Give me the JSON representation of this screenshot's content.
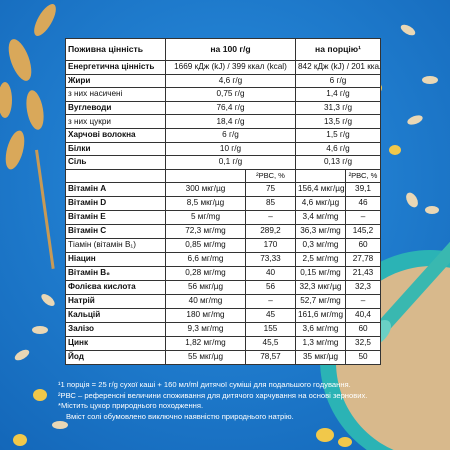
{
  "table": {
    "header": [
      "Поживна цінність",
      "на 100 г/g",
      "на порцію¹"
    ],
    "rows": [
      [
        "Енергетична цінність",
        "1669 кДж (kJ) / 399 ккал (kcal)",
        "842 кДж (kJ) / 201 ккал (kcal)"
      ],
      [
        "Жири",
        "4,6 г/g",
        "6 г/g"
      ],
      [
        "з них насичені",
        "0,75 г/g",
        "1,4 г/g"
      ],
      [
        "Вуглеводи",
        "76,4 г/g",
        "31,3 г/g"
      ],
      [
        "з них цукри",
        "18,4 г/g",
        "13,5 г/g"
      ],
      [
        "Харчові волокна",
        "6 г/g",
        "1,5 г/g"
      ],
      [
        "Білки",
        "10 г/g",
        "4,6 г/g"
      ],
      [
        "Сіль",
        "0,1 г/g",
        "0,13 г/g"
      ]
    ],
    "rda_header": [
      "²РВС, %",
      "²РВС, %"
    ],
    "vitamins": [
      [
        "Вітамін A",
        "300 мкг/µg",
        "75",
        "156,4 мкг/µg",
        "39,1"
      ],
      [
        "Вітамін D",
        "8,5 мкг/µg",
        "85",
        "4,6 мкг/µg",
        "46"
      ],
      [
        "Вітамін E",
        "5 мг/mg",
        "–",
        "3,4 мг/mg",
        "–"
      ],
      [
        "Вітамін C",
        "72,3 мг/mg",
        "289,2",
        "36,3 мг/mg",
        "145,2"
      ],
      [
        "Тіамін (вітамін B₁)",
        "0,85 мг/mg",
        "170",
        "0,3 мг/mg",
        "60"
      ],
      [
        "Ніацин",
        "6,6 мг/mg",
        "73,33",
        "2,5 мг/mg",
        "27,78"
      ],
      [
        "Вітамін B₆",
        "0,28 мг/mg",
        "40",
        "0,15 мг/mg",
        "21,43"
      ],
      [
        "Фолієва кислота",
        "56 мкг/µg",
        "56",
        "32,3 мкг/µg",
        "32,3"
      ],
      [
        "Натрій",
        "40 мг/mg",
        "–",
        "52,7 мг/mg",
        "–"
      ],
      [
        "Кальцій",
        "180 мг/mg",
        "45",
        "161,6 мг/mg",
        "40,4"
      ],
      [
        "Залізо",
        "9,3 мг/mg",
        "155",
        "3,6 мг/mg",
        "60"
      ],
      [
        "Цинк",
        "1,82 мг/mg",
        "45,5",
        "1,3 мг/mg",
        "32,5"
      ],
      [
        "Йод",
        "55 мкг/µg",
        "78,57",
        "35 мкг/µg",
        "50"
      ]
    ]
  },
  "footnotes": [
    "¹1 порція = 25 г/g сухої каші + 160 мл/ml дитячої суміші для подальшого годування.",
    "²РВС – референсні величини споживання для дитячого харчування на основі зернових.",
    "*Містить цукор природнього походження.",
    "Вміст солі обумовлено виключно наявністю природнього натрію."
  ]
}
